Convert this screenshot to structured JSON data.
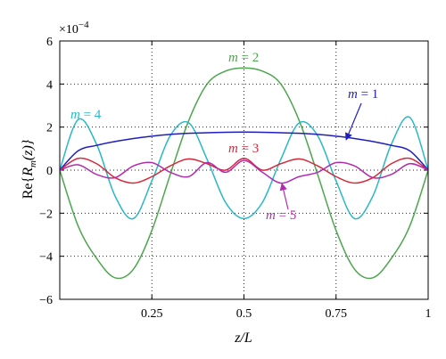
{
  "chart_data": {
    "type": "line",
    "xlabel": "z/L",
    "ylabel": "Re{R_m(z)}",
    "ylabel_parts": {
      "pre": "Re{",
      "var": "R",
      "sub": "m",
      "post": "(z)}"
    },
    "xlim": [
      0,
      1
    ],
    "ylim": [
      -6,
      6
    ],
    "y_scale_multiplier": {
      "base": "×10",
      "exponent": "−4"
    },
    "x_ticks": [
      0.25,
      0.5,
      0.75,
      1
    ],
    "x_tick_labels": [
      "0.25",
      "0.5",
      "0.75",
      "1"
    ],
    "y_ticks": [
      -6,
      -4,
      -2,
      0,
      2,
      4,
      6
    ],
    "y_tick_labels": [
      "−6",
      "−4",
      "−2",
      "0",
      "2",
      "4",
      "6"
    ],
    "grid": true,
    "x": [
      0,
      0.05,
      0.1,
      0.15,
      0.2,
      0.25,
      0.3,
      0.35,
      0.4,
      0.45,
      0.5,
      0.55,
      0.6,
      0.65,
      0.7,
      0.75,
      0.8,
      0.85,
      0.9,
      0.95,
      1
    ],
    "series": [
      {
        "name": "m = 1",
        "color": "#1f1fbf",
        "values": [
          0,
          0.9,
          1.15,
          1.33,
          1.47,
          1.58,
          1.66,
          1.71,
          1.74,
          1.76,
          1.77,
          1.76,
          1.74,
          1.71,
          1.66,
          1.58,
          1.47,
          1.33,
          1.15,
          0.9,
          0
        ]
      },
      {
        "name": "m = 2",
        "color": "#4ca64c",
        "values": [
          0,
          -2.6,
          -4.1,
          -5.0,
          -4.6,
          -2.8,
          -0.2,
          2.3,
          4.0,
          4.6,
          4.75,
          4.6,
          4.0,
          2.3,
          -0.2,
          -2.8,
          -4.6,
          -5.0,
          -4.1,
          -2.6,
          0
        ]
      },
      {
        "name": "m = 3",
        "color": "#d42a3c",
        "values": [
          0,
          0.55,
          0.3,
          -0.35,
          -0.6,
          -0.3,
          0.2,
          0.52,
          0.3,
          0.0,
          0.55,
          0.0,
          0.3,
          0.52,
          0.2,
          -0.3,
          -0.6,
          -0.35,
          0.3,
          0.55,
          0
        ]
      },
      {
        "name": "m = 4",
        "color": "#2ab8c8",
        "values": [
          0,
          2.35,
          1.2,
          -1.2,
          -2.25,
          -0.5,
          1.6,
          2.2,
          0.5,
          -1.5,
          -2.25,
          -1.5,
          0.5,
          2.2,
          1.6,
          -0.5,
          -2.25,
          -1.2,
          1.2,
          2.45,
          0
        ]
      },
      {
        "name": "m = 5",
        "color": "#b22cb2",
        "values": [
          0,
          0.25,
          -0.2,
          -0.35,
          0.2,
          0.35,
          -0.1,
          -0.3,
          0.35,
          -0.1,
          0.45,
          -0.1,
          -0.6,
          -0.3,
          -0.1,
          0.35,
          0.2,
          -0.35,
          -0.2,
          0.3,
          0
        ]
      }
    ],
    "annotations": [
      {
        "text_pre": "m",
        "text_post": " = 1",
        "series": "m = 1"
      },
      {
        "text_pre": "m",
        "text_post": " = 2",
        "series": "m = 2"
      },
      {
        "text_pre": "m",
        "text_post": " = 3",
        "series": "m = 3"
      },
      {
        "text_pre": "m",
        "text_post": " = 4",
        "series": "m = 4"
      },
      {
        "text_pre": "m",
        "text_post": " = 5",
        "series": "m = 5"
      }
    ]
  }
}
